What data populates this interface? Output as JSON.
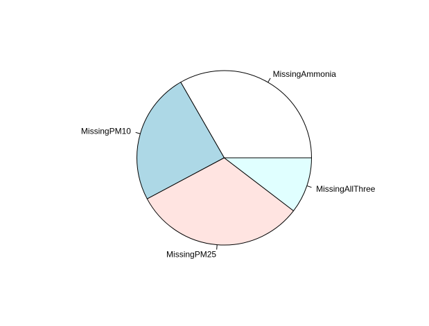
{
  "chart_data": {
    "type": "pie",
    "title": "",
    "start_angle_deg": 0,
    "direction": "counterclockwise",
    "slices": [
      {
        "label": "MissingAmmonia",
        "value": 33.3,
        "color": "#FFFFFF"
      },
      {
        "label": "MissingPM10",
        "value": 24.5,
        "color": "#ADD8E6"
      },
      {
        "label": "MissingPM25",
        "value": 31.8,
        "color": "#FFE4E1"
      },
      {
        "label": "MissingAllThree",
        "value": 10.4,
        "color": "#E0FFFF"
      }
    ]
  }
}
